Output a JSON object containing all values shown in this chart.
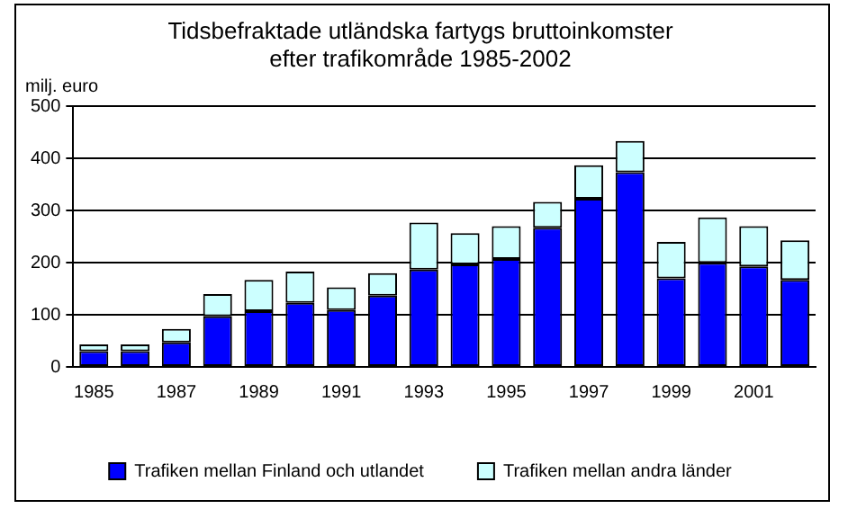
{
  "chart_data": {
    "type": "bar",
    "title": "Tidsbefraktade utländska fartygs bruttoinkomster efter trafikområde 1985-2002",
    "ylabel": "milj. euro",
    "categories": [
      "1985",
      null,
      "1987",
      null,
      "1989",
      null,
      "1991",
      null,
      "1993",
      null,
      "1995",
      null,
      "1997",
      null,
      "1999",
      null,
      "2001",
      null
    ],
    "series": [
      {
        "name": "Trafiken mellan Finland och utlandet",
        "color": "#0000ff",
        "values": [
          30,
          30,
          47,
          97,
          107,
          123,
          109,
          137,
          187,
          197,
          207,
          267,
          323,
          374,
          170,
          200,
          193,
          167
        ]
      },
      {
        "name": "Trafiken mellan andra länder",
        "color": "#ccffff",
        "values": [
          13,
          13,
          26,
          43,
          60,
          60,
          44,
          43,
          90,
          60,
          63,
          50,
          64,
          60,
          70,
          87,
          77,
          76
        ]
      }
    ],
    "stacked": true,
    "ylim": [
      0,
      500
    ],
    "yticks": [
      0,
      100,
      200,
      300,
      400,
      500
    ],
    "grid": "y",
    "legend": "bottom"
  }
}
